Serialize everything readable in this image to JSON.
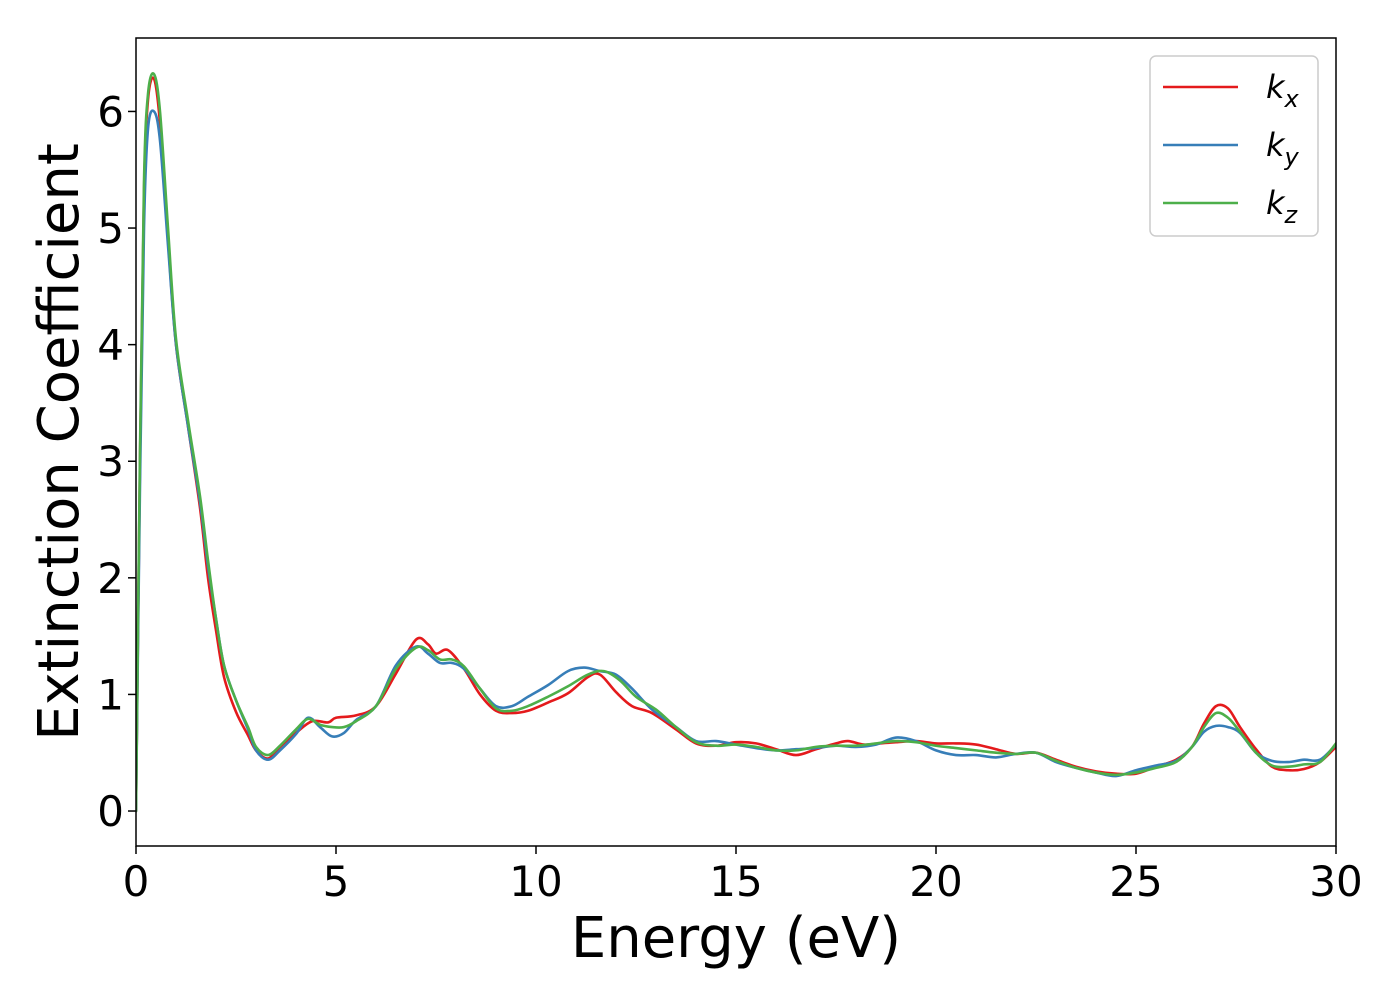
{
  "chart_data": {
    "type": "line",
    "xlabel": "Energy (eV)",
    "ylabel": "Extinction Coefficient",
    "xlim": [
      0,
      30
    ],
    "ylim": [
      -0.3,
      6.63
    ],
    "xticks": [
      0,
      5,
      10,
      15,
      20,
      25,
      30
    ],
    "yticks": [
      0,
      1,
      2,
      3,
      4,
      5,
      6
    ],
    "grid": false,
    "legend_position": "top-right",
    "series": [
      {
        "name": "k",
        "subscript": "x",
        "color": "#e41a1c",
        "x": [
          0,
          0.1,
          0.2,
          0.3,
          0.45,
          0.6,
          0.8,
          1.0,
          1.3,
          1.6,
          1.8,
          2.0,
          2.2,
          2.5,
          2.8,
          3.0,
          3.3,
          3.6,
          4.0,
          4.4,
          4.8,
          5.0,
          5.5,
          6.0,
          6.5,
          7.0,
          7.3,
          7.5,
          7.8,
          8.2,
          8.6,
          9.0,
          9.4,
          9.8,
          10.3,
          10.8,
          11.3,
          11.6,
          12.0,
          12.4,
          12.9,
          13.5,
          14.0,
          14.5,
          15.0,
          15.5,
          16.0,
          16.5,
          17.0,
          17.5,
          17.8,
          18.2,
          18.6,
          19.0,
          19.5,
          20.0,
          20.5,
          21.0,
          21.5,
          22.0,
          22.5,
          23.0,
          23.5,
          24.0,
          24.5,
          25.0,
          25.5,
          26.0,
          26.4,
          26.7,
          27.0,
          27.3,
          27.6,
          28.0,
          28.4,
          28.8,
          29.2,
          29.6,
          30.0
        ],
        "values": [
          0,
          3.0,
          5.3,
          6.1,
          6.28,
          5.9,
          4.9,
          4.0,
          3.3,
          2.6,
          2.0,
          1.55,
          1.15,
          0.85,
          0.65,
          0.52,
          0.45,
          0.55,
          0.67,
          0.77,
          0.76,
          0.8,
          0.82,
          0.9,
          1.18,
          1.47,
          1.43,
          1.35,
          1.38,
          1.22,
          1.0,
          0.86,
          0.84,
          0.86,
          0.93,
          1.01,
          1.15,
          1.17,
          1.02,
          0.9,
          0.84,
          0.7,
          0.58,
          0.56,
          0.59,
          0.58,
          0.53,
          0.48,
          0.53,
          0.58,
          0.6,
          0.57,
          0.58,
          0.59,
          0.6,
          0.58,
          0.58,
          0.57,
          0.53,
          0.49,
          0.5,
          0.44,
          0.38,
          0.34,
          0.32,
          0.32,
          0.38,
          0.44,
          0.55,
          0.75,
          0.9,
          0.88,
          0.72,
          0.53,
          0.38,
          0.35,
          0.36,
          0.42,
          0.55
        ]
      },
      {
        "name": "k",
        "subscript": "y",
        "color": "#377eb8",
        "x": [
          0,
          0.1,
          0.2,
          0.3,
          0.45,
          0.6,
          0.8,
          1.0,
          1.3,
          1.6,
          1.8,
          2.0,
          2.2,
          2.5,
          2.8,
          3.0,
          3.3,
          3.6,
          4.0,
          4.3,
          4.6,
          4.9,
          5.2,
          5.5,
          6.0,
          6.5,
          7.0,
          7.3,
          7.6,
          7.9,
          8.2,
          8.6,
          9.0,
          9.4,
          9.8,
          10.3,
          10.8,
          11.2,
          11.6,
          12.0,
          12.4,
          12.9,
          13.5,
          14.0,
          14.5,
          15.0,
          15.5,
          16.0,
          16.5,
          17.0,
          17.5,
          18.0,
          18.5,
          19.0,
          19.5,
          20.0,
          20.5,
          21.0,
          21.5,
          22.0,
          22.5,
          23.0,
          23.5,
          24.0,
          24.5,
          25.0,
          25.5,
          26.0,
          26.4,
          26.7,
          27.0,
          27.3,
          27.6,
          28.0,
          28.4,
          28.8,
          29.2,
          29.6,
          30.0
        ],
        "values": [
          0,
          2.8,
          5.0,
          5.85,
          6.0,
          5.75,
          4.85,
          4.0,
          3.3,
          2.65,
          2.1,
          1.65,
          1.25,
          0.95,
          0.7,
          0.52,
          0.44,
          0.52,
          0.66,
          0.8,
          0.72,
          0.64,
          0.67,
          0.78,
          0.9,
          1.25,
          1.41,
          1.35,
          1.27,
          1.27,
          1.22,
          1.05,
          0.9,
          0.9,
          0.98,
          1.08,
          1.2,
          1.23,
          1.2,
          1.17,
          1.05,
          0.87,
          0.72,
          0.6,
          0.6,
          0.57,
          0.54,
          0.52,
          0.53,
          0.54,
          0.56,
          0.55,
          0.57,
          0.63,
          0.6,
          0.52,
          0.48,
          0.48,
          0.46,
          0.49,
          0.5,
          0.42,
          0.37,
          0.33,
          0.3,
          0.35,
          0.39,
          0.43,
          0.55,
          0.68,
          0.73,
          0.72,
          0.67,
          0.5,
          0.43,
          0.42,
          0.44,
          0.44,
          0.57
        ]
      },
      {
        "name": "k",
        "subscript": "z",
        "color": "#4daf4a",
        "x": [
          0,
          0.1,
          0.2,
          0.3,
          0.45,
          0.6,
          0.8,
          1.0,
          1.3,
          1.6,
          1.8,
          2.0,
          2.2,
          2.5,
          2.8,
          3.0,
          3.3,
          3.6,
          4.0,
          4.3,
          4.6,
          4.9,
          5.2,
          5.5,
          6.0,
          6.5,
          7.0,
          7.3,
          7.6,
          7.9,
          8.2,
          8.6,
          9.0,
          9.4,
          9.8,
          10.3,
          10.8,
          11.3,
          11.7,
          12.1,
          12.5,
          13.0,
          13.5,
          14.0,
          14.5,
          15.0,
          15.5,
          16.0,
          16.5,
          17.0,
          17.5,
          18.0,
          18.5,
          19.0,
          19.5,
          20.0,
          20.5,
          21.0,
          21.5,
          22.0,
          22.5,
          23.0,
          23.5,
          24.0,
          24.5,
          25.0,
          25.5,
          26.0,
          26.4,
          26.7,
          27.0,
          27.3,
          27.6,
          28.0,
          28.4,
          28.8,
          29.2,
          29.6,
          30.0
        ],
        "values": [
          0,
          3.1,
          5.4,
          6.15,
          6.32,
          6.0,
          5.0,
          4.05,
          3.35,
          2.7,
          2.15,
          1.65,
          1.25,
          0.95,
          0.72,
          0.55,
          0.48,
          0.56,
          0.7,
          0.79,
          0.74,
          0.72,
          0.72,
          0.77,
          0.9,
          1.22,
          1.4,
          1.38,
          1.3,
          1.3,
          1.24,
          1.05,
          0.88,
          0.86,
          0.9,
          0.98,
          1.07,
          1.17,
          1.2,
          1.12,
          0.98,
          0.87,
          0.72,
          0.59,
          0.56,
          0.57,
          0.55,
          0.52,
          0.52,
          0.55,
          0.56,
          0.56,
          0.58,
          0.6,
          0.59,
          0.56,
          0.54,
          0.52,
          0.5,
          0.49,
          0.5,
          0.43,
          0.37,
          0.33,
          0.31,
          0.33,
          0.37,
          0.42,
          0.55,
          0.72,
          0.84,
          0.8,
          0.68,
          0.5,
          0.39,
          0.38,
          0.4,
          0.42,
          0.58
        ]
      }
    ]
  }
}
